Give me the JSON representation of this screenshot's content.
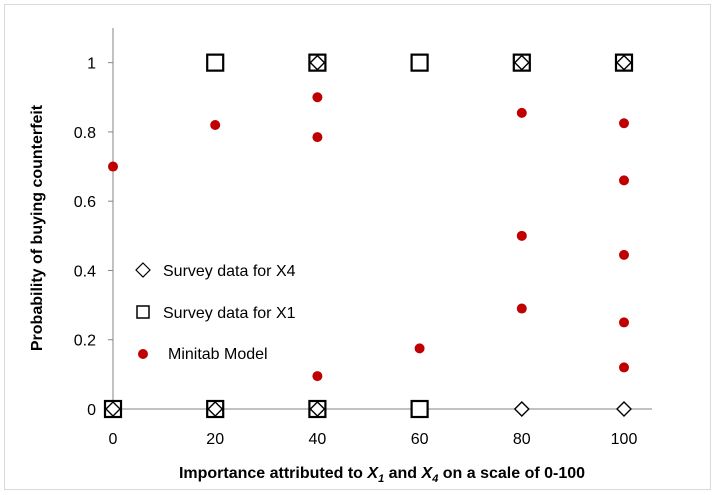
{
  "chart_data": {
    "type": "scatter",
    "title": "",
    "xlabel": "Importance attributed to X1 and X4 on a scale of 0-100",
    "ylabel": "Probability of buying counterfeit",
    "xlim": [
      0,
      100
    ],
    "ylim": [
      0,
      1.1
    ],
    "xticks": [
      "0",
      "20",
      "40",
      "60",
      "80",
      "100"
    ],
    "yticks": [
      "0",
      "0.2",
      "0.4",
      "0.6",
      "0.8",
      "1"
    ],
    "xtick_values": [
      0,
      20,
      40,
      60,
      80,
      100
    ],
    "ytick_values": [
      0,
      0.2,
      0.4,
      0.6,
      0.8,
      1
    ],
    "grid": false,
    "legend_position": "left",
    "series": [
      {
        "name": "Survey data for X4",
        "marker": "diamond",
        "color": "#000000",
        "points": [
          [
            0,
            0
          ],
          [
            20,
            0
          ],
          [
            40,
            0
          ],
          [
            40,
            1
          ],
          [
            80,
            0
          ],
          [
            80,
            1
          ],
          [
            100,
            0
          ],
          [
            100,
            1
          ]
        ]
      },
      {
        "name": "Survey data for X1",
        "marker": "square",
        "color": "#000000",
        "points": [
          [
            0,
            0
          ],
          [
            20,
            0
          ],
          [
            20,
            1
          ],
          [
            40,
            0
          ],
          [
            40,
            1
          ],
          [
            60,
            0
          ],
          [
            60,
            1
          ],
          [
            80,
            1
          ],
          [
            100,
            1
          ]
        ]
      },
      {
        "name": "Minitab Model",
        "marker": "circle",
        "color": "#c00000",
        "points": [
          [
            0,
            0.7
          ],
          [
            20,
            0.82
          ],
          [
            40,
            0.9
          ],
          [
            40,
            0.785
          ],
          [
            40,
            0.095
          ],
          [
            60,
            0.175
          ],
          [
            80,
            0.855
          ],
          [
            80,
            0.5
          ],
          [
            80,
            0.29
          ],
          [
            100,
            0.825
          ],
          [
            100,
            0.66
          ],
          [
            100,
            0.445
          ],
          [
            100,
            0.25
          ],
          [
            100,
            0.12
          ]
        ]
      }
    ]
  }
}
